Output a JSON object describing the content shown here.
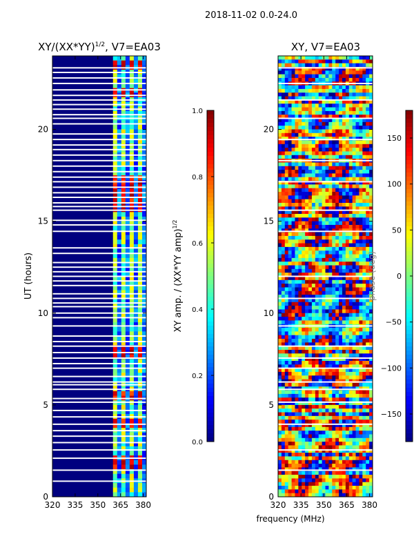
{
  "suptitle": "2018-11-02 0.0-24.0",
  "colors": {
    "jet": [
      "#00007f",
      "#0000ff",
      "#007fff",
      "#00ffff",
      "#7fff7f",
      "#ffff00",
      "#ff7f00",
      "#ff0000",
      "#7f0000"
    ],
    "gap": "#ffffff",
    "axis": "#000000"
  },
  "chart_data": [
    {
      "type": "heatmap",
      "title_main": "XY/(XX*YY)",
      "title_sup": "1/2",
      "title_tail": ", V7=EA03",
      "xlabel": "",
      "ylabel": "UT (hours)",
      "xlim": [
        320,
        382
      ],
      "ylim": [
        0,
        24
      ],
      "xticks": [
        320,
        335,
        350,
        365,
        380
      ],
      "yticks": [
        0,
        5,
        10,
        15,
        20
      ],
      "gaps": [
        0.85,
        1.45,
        2.1,
        2.55,
        2.95,
        3.3,
        3.6,
        3.95,
        4.35,
        4.7,
        5.15,
        5.35,
        5.85,
        6.1,
        6.25,
        6.55,
        7.0,
        7.25,
        7.55,
        7.85,
        8.2,
        8.45,
        8.75,
        9.3,
        9.75,
        10.0,
        10.35,
        10.55,
        10.8,
        11.05,
        11.5,
        11.75,
        12.0,
        12.25,
        12.5,
        12.75,
        13.25,
        13.55,
        14.45,
        14.8,
        15.05,
        15.6,
        15.8,
        16.0,
        16.3,
        16.55,
        16.85,
        17.15,
        17.4,
        17.7,
        18.0,
        18.3,
        18.6,
        18.9,
        19.15,
        19.45,
        19.75,
        20.3,
        20.6,
        20.8,
        21.1,
        21.35,
        21.6,
        21.85,
        22.15,
        22.5,
        22.8,
        23.1,
        23.35
      ],
      "bright_band_mhz": [
        360,
        382
      ],
      "hot_hours": [
        1.6,
        1.8,
        2.0,
        4.0,
        5.5,
        7.7,
        8.0,
        15.6,
        16.0,
        16.5,
        16.9,
        17.3,
        22.0,
        23.5
      ],
      "colorbar": {
        "min": 0.0,
        "max": 1.0,
        "ticks": [
          "0.0",
          "0.2",
          "0.4",
          "0.6",
          "0.8",
          "1.0"
        ],
        "label_main": "XY amp. / (XX*YY amp)",
        "label_sup": "1/2"
      }
    },
    {
      "type": "heatmap",
      "title": "XY, V7=EA03",
      "xlabel": "frequency (MHz)",
      "ylabel": "",
      "xlim": [
        320,
        382
      ],
      "ylim": [
        0,
        24
      ],
      "xticks": [
        320,
        335,
        350,
        365,
        380
      ],
      "yticks": [
        0,
        5,
        10,
        15,
        20
      ],
      "gaps": [
        1.45,
        2.55,
        3.95,
        5.15,
        5.85,
        6.25,
        7.0,
        7.55,
        8.2,
        9.3,
        10.8,
        12.0,
        14.45,
        15.6,
        17.15,
        18.3,
        19.45,
        20.6,
        21.6,
        22.5,
        23.35
      ],
      "colorbar": {
        "min": -180,
        "max": 180,
        "ticks": [
          "−150",
          "−100",
          "−50",
          "0",
          "50",
          "100",
          "150"
        ],
        "tick_values": [
          -150,
          -100,
          -50,
          0,
          50,
          100,
          150
        ],
        "label": "phase (deg)"
      }
    }
  ]
}
